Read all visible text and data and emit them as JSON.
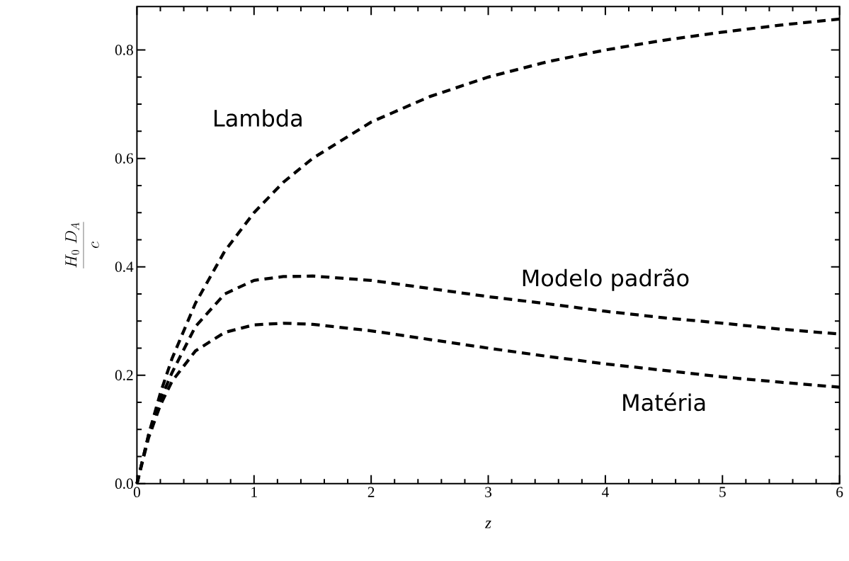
{
  "chart_data": {
    "type": "line",
    "xlabel": "z",
    "ylabel": "\\frac{H_0\\ D_A}{c}",
    "x": [
      0,
      0.1,
      0.2,
      0.3,
      0.5,
      0.75,
      1,
      1.25,
      1.5,
      2,
      2.5,
      3,
      3.5,
      4,
      4.5,
      5,
      5.5,
      6
    ],
    "series": [
      {
        "name": "Lambda",
        "color": "#000000",
        "values": [
          0,
          0.091,
          0.167,
          0.231,
          0.333,
          0.429,
          0.5,
          0.556,
          0.6,
          0.667,
          0.714,
          0.75,
          0.778,
          0.8,
          0.818,
          0.833,
          0.846,
          0.857
        ]
      },
      {
        "name": "Modelo padrão",
        "color": "#000000",
        "values": [
          0,
          0.09,
          0.155,
          0.205,
          0.29,
          0.35,
          0.375,
          0.382,
          0.383,
          0.375,
          0.36,
          0.345,
          0.332,
          0.318,
          0.306,
          0.296,
          0.285,
          0.276
        ]
      },
      {
        "name": "Matéria",
        "color": "#000000",
        "values": [
          0,
          0.085,
          0.145,
          0.189,
          0.245,
          0.279,
          0.293,
          0.296,
          0.294,
          0.282,
          0.266,
          0.25,
          0.235,
          0.221,
          0.209,
          0.197,
          0.187,
          0.178
        ]
      }
    ],
    "xlim": [
      0,
      6
    ],
    "ylim": [
      0,
      0.88
    ],
    "xticks": [
      0,
      1,
      2,
      3,
      4,
      5,
      6
    ],
    "yticks": [
      {
        "value": 0,
        "label": "0.0"
      },
      {
        "value": 0.2,
        "label": "0.2"
      },
      {
        "value": 0.4,
        "label": "0.4"
      },
      {
        "value": 0.6,
        "label": "0.6"
      },
      {
        "value": 0.8,
        "label": "0.8"
      }
    ],
    "grid": false,
    "legend": false,
    "marker": "none",
    "line_style": "dashed"
  }
}
